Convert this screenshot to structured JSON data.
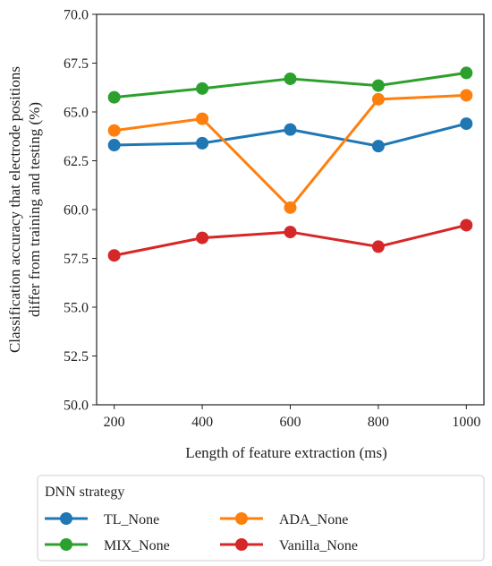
{
  "chart_data": {
    "type": "line",
    "x": [
      200,
      400,
      600,
      800,
      1000
    ],
    "series": [
      {
        "name": "TL_None",
        "color": "#1f77b4",
        "values": [
          63.3,
          63.4,
          64.1,
          63.25,
          64.4
        ]
      },
      {
        "name": "MIX_None",
        "color": "#2ca02c",
        "values": [
          65.75,
          66.2,
          66.7,
          66.35,
          67.0
        ]
      },
      {
        "name": "ADA_None",
        "color": "#ff7f0e",
        "values": [
          64.05,
          64.65,
          60.1,
          65.65,
          65.85
        ]
      },
      {
        "name": "Vanilla_None",
        "color": "#d62728",
        "values": [
          57.65,
          58.55,
          58.85,
          58.1,
          59.2
        ]
      }
    ],
    "xlabel": "Length of feature extraction (ms)",
    "ylabel_lines": [
      "Classification accuracy that electrode positions",
      "differ from training and testing (%)"
    ],
    "xticks": [
      "200",
      "400",
      "600",
      "800",
      "1000"
    ],
    "yticks": [
      "50.0",
      "52.5",
      "55.0",
      "57.5",
      "60.0",
      "62.5",
      "65.0",
      "67.5",
      "70.0"
    ],
    "xlim": [
      160,
      1040
    ],
    "ylim": [
      50.0,
      70.0
    ],
    "grid": false,
    "legend": {
      "title": "DNN strategy",
      "placement": "below",
      "order": [
        "TL_None",
        "ADA_None",
        "MIX_None",
        "Vanilla_None"
      ]
    }
  }
}
